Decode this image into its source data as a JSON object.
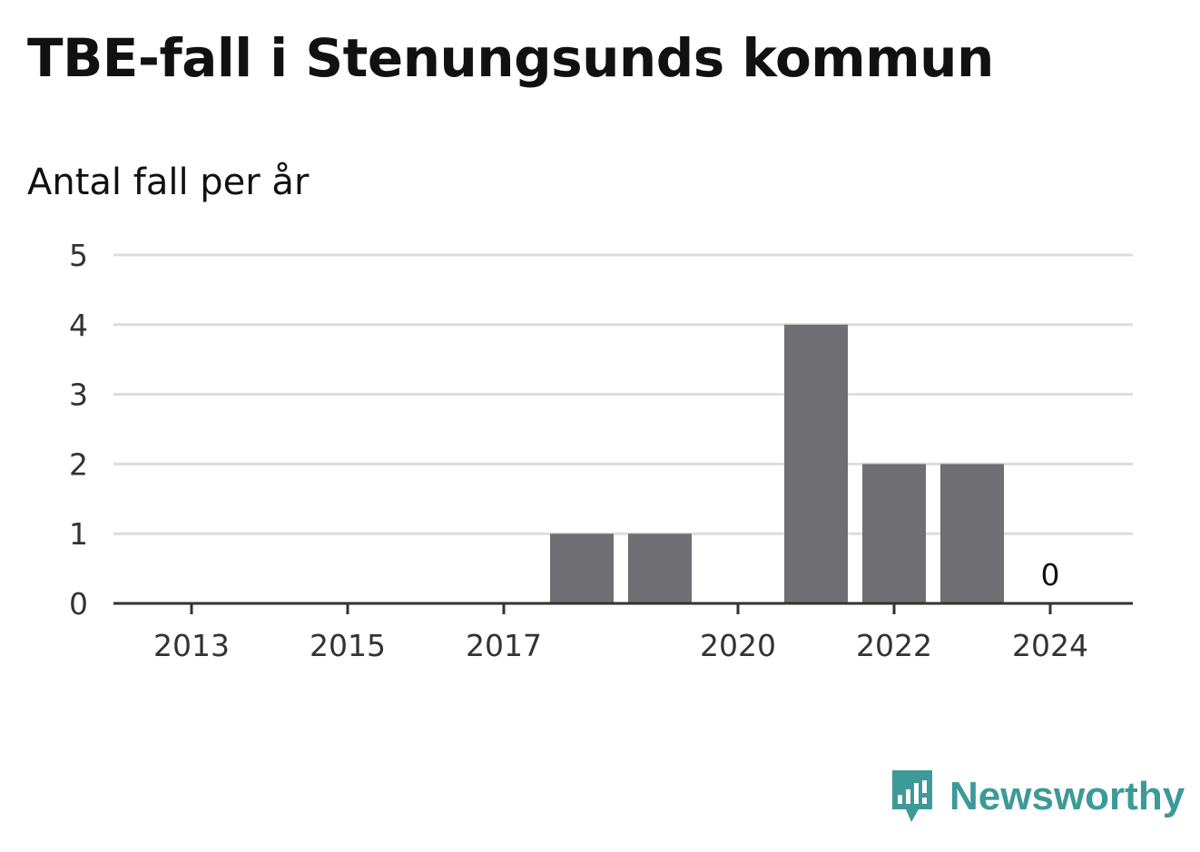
{
  "header": {
    "title": "TBE-fall i Stenungsunds kommun",
    "subtitle": "Antal fall per år"
  },
  "brand": {
    "name": "Newsworthy",
    "icon": "newsworthy-logo-icon",
    "color": "#3d9a98"
  },
  "chart_data": {
    "type": "bar",
    "title": "TBE-fall i Stenungsunds kommun",
    "subtitle": "Antal fall per år",
    "xlabel": "",
    "ylabel": "",
    "categories": [
      "2013",
      "2014",
      "2015",
      "2016",
      "2017",
      "2018",
      "2019",
      "2020",
      "2021",
      "2022",
      "2023",
      "2024"
    ],
    "values": [
      0,
      0,
      0,
      0,
      0,
      1,
      1,
      0,
      4,
      2,
      2,
      0
    ],
    "x_tick_labels": [
      "2013",
      "2015",
      "2017",
      "2020",
      "2022",
      "2024"
    ],
    "y_ticks": [
      0,
      1,
      2,
      3,
      4,
      5
    ],
    "ylim": [
      0,
      5
    ],
    "data_labels": [
      {
        "category": "2024",
        "text": "0"
      }
    ],
    "grid": true,
    "legend": "none",
    "bar_color": "#706f74",
    "grid_color": "#dddddd",
    "axis_color": "#333333"
  }
}
